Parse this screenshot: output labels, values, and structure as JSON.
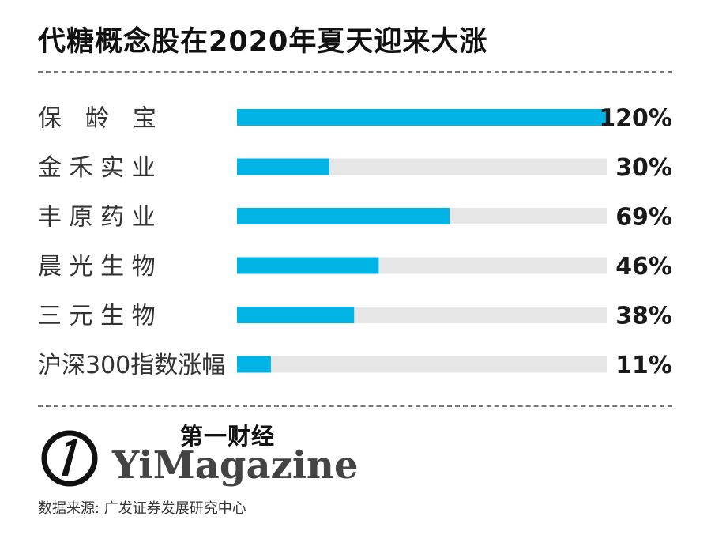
{
  "title": "代糖概念股在2020年夏天迎来大涨",
  "chart_data": {
    "type": "bar",
    "orientation": "horizontal",
    "categories": [
      "保　龄　宝",
      "金 禾 实 业",
      "丰 原 药 业",
      "晨 光 生 物",
      "三 元 生 物",
      "沪深300指数涨幅"
    ],
    "values": [
      120,
      30,
      69,
      46,
      38,
      11
    ],
    "value_labels": [
      "120%",
      "30%",
      "69%",
      "46%",
      "38%",
      "11%"
    ],
    "xlim": [
      0,
      120
    ],
    "bar_color": "#00b4e6",
    "track_color": "#e6e6e6",
    "grid": false
  },
  "brand": {
    "chinese": "第一财经",
    "english": "YiMagazine"
  },
  "source": "数据来源: 广发证券发展研究中心"
}
